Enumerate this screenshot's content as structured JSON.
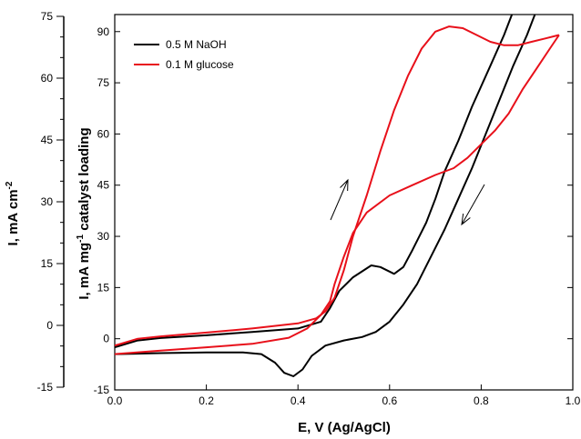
{
  "chart_data": {
    "type": "line",
    "xlabel": "E, V (Ag/AgCl)",
    "ylabel_right_axis_base": "I, mA mg",
    "ylabel_right_axis_sup": "-1",
    "ylabel_right_axis_tail": " catalyst loading",
    "ylabel_left_axis_base": "I, mA cm",
    "ylabel_left_axis_sup": "-2",
    "xlim": [
      0.0,
      1.0
    ],
    "ylim_mg": [
      -15,
      95
    ],
    "ylim_cm2": [
      -15,
      75
    ],
    "xticks": [
      "0.0",
      "0.2",
      "0.4",
      "0.6",
      "0.8",
      "1.0"
    ],
    "yticks_mg": [
      "-15",
      "0",
      "15",
      "30",
      "45",
      "60",
      "75",
      "90"
    ],
    "yticks_cm2": [
      "-15",
      "0",
      "15",
      "30",
      "45",
      "60",
      "75"
    ],
    "legend_position": "top-left",
    "annotations": [
      "anodic scan arrow",
      "cathodic scan arrow"
    ],
    "series": [
      {
        "name": "0.5 M NaOH",
        "color": "#000000",
        "forward": [
          [
            0.0,
            -2.5
          ],
          [
            0.05,
            -0.5
          ],
          [
            0.1,
            0.2
          ],
          [
            0.2,
            1.0
          ],
          [
            0.3,
            2.0
          ],
          [
            0.4,
            3.0
          ],
          [
            0.45,
            5.0
          ],
          [
            0.47,
            9.0
          ],
          [
            0.49,
            14.0
          ],
          [
            0.52,
            18.0
          ],
          [
            0.56,
            21.5
          ],
          [
            0.58,
            21.0
          ],
          [
            0.61,
            19.0
          ],
          [
            0.63,
            21.0
          ],
          [
            0.65,
            26.0
          ],
          [
            0.68,
            34.0
          ],
          [
            0.7,
            41.0
          ],
          [
            0.72,
            49.0
          ],
          [
            0.75,
            58.0
          ],
          [
            0.78,
            68.0
          ],
          [
            0.82,
            80.0
          ],
          [
            0.85,
            89.0
          ],
          [
            0.87,
            96.0
          ]
        ],
        "reverse": [
          [
            0.92,
            96.0
          ],
          [
            0.9,
            89.0
          ],
          [
            0.87,
            80.0
          ],
          [
            0.84,
            70.0
          ],
          [
            0.81,
            60.0
          ],
          [
            0.78,
            50.0
          ],
          [
            0.75,
            41.0
          ],
          [
            0.72,
            32.0
          ],
          [
            0.69,
            24.0
          ],
          [
            0.66,
            16.0
          ],
          [
            0.63,
            10.0
          ],
          [
            0.6,
            5.0
          ],
          [
            0.57,
            2.0
          ],
          [
            0.54,
            0.5
          ],
          [
            0.5,
            -0.5
          ],
          [
            0.46,
            -2.0
          ],
          [
            0.43,
            -5.0
          ],
          [
            0.41,
            -9.0
          ],
          [
            0.39,
            -11.0
          ],
          [
            0.37,
            -10.0
          ],
          [
            0.35,
            -7.0
          ],
          [
            0.32,
            -4.5
          ],
          [
            0.28,
            -4.0
          ],
          [
            0.2,
            -4.0
          ],
          [
            0.1,
            -4.2
          ],
          [
            0.0,
            -4.5
          ]
        ]
      },
      {
        "name": "0.1 M glucose",
        "color": "#e8101a",
        "forward": [
          [
            0.0,
            -2.0
          ],
          [
            0.05,
            0.0
          ],
          [
            0.1,
            0.7
          ],
          [
            0.2,
            1.8
          ],
          [
            0.3,
            3.0
          ],
          [
            0.4,
            4.5
          ],
          [
            0.44,
            6.0
          ],
          [
            0.46,
            8.0
          ],
          [
            0.48,
            12.0
          ],
          [
            0.5,
            20.0
          ],
          [
            0.52,
            30.0
          ],
          [
            0.55,
            42.0
          ],
          [
            0.58,
            55.0
          ],
          [
            0.61,
            67.0
          ],
          [
            0.64,
            77.0
          ],
          [
            0.67,
            85.0
          ],
          [
            0.7,
            90.0
          ],
          [
            0.73,
            91.5
          ],
          [
            0.76,
            91.0
          ],
          [
            0.79,
            89.0
          ],
          [
            0.82,
            87.0
          ],
          [
            0.85,
            86.0
          ],
          [
            0.88,
            86.0
          ],
          [
            0.91,
            87.0
          ],
          [
            0.94,
            88.0
          ],
          [
            0.97,
            89.0
          ]
        ],
        "reverse": [
          [
            0.97,
            89.0
          ],
          [
            0.95,
            85.0
          ],
          [
            0.92,
            79.0
          ],
          [
            0.89,
            73.0
          ],
          [
            0.86,
            66.0
          ],
          [
            0.83,
            61.0
          ],
          [
            0.8,
            57.0
          ],
          [
            0.77,
            53.0
          ],
          [
            0.74,
            50.0
          ],
          [
            0.7,
            48.0
          ],
          [
            0.65,
            45.0
          ],
          [
            0.6,
            42.0
          ],
          [
            0.55,
            37.0
          ],
          [
            0.52,
            31.0
          ],
          [
            0.5,
            24.0
          ],
          [
            0.48,
            16.0
          ],
          [
            0.47,
            11.0
          ],
          [
            0.45,
            7.0
          ],
          [
            0.42,
            3.0
          ],
          [
            0.38,
            0.3
          ],
          [
            0.3,
            -1.5
          ],
          [
            0.2,
            -2.5
          ],
          [
            0.1,
            -3.5
          ],
          [
            0.0,
            -4.5
          ]
        ]
      }
    ]
  }
}
